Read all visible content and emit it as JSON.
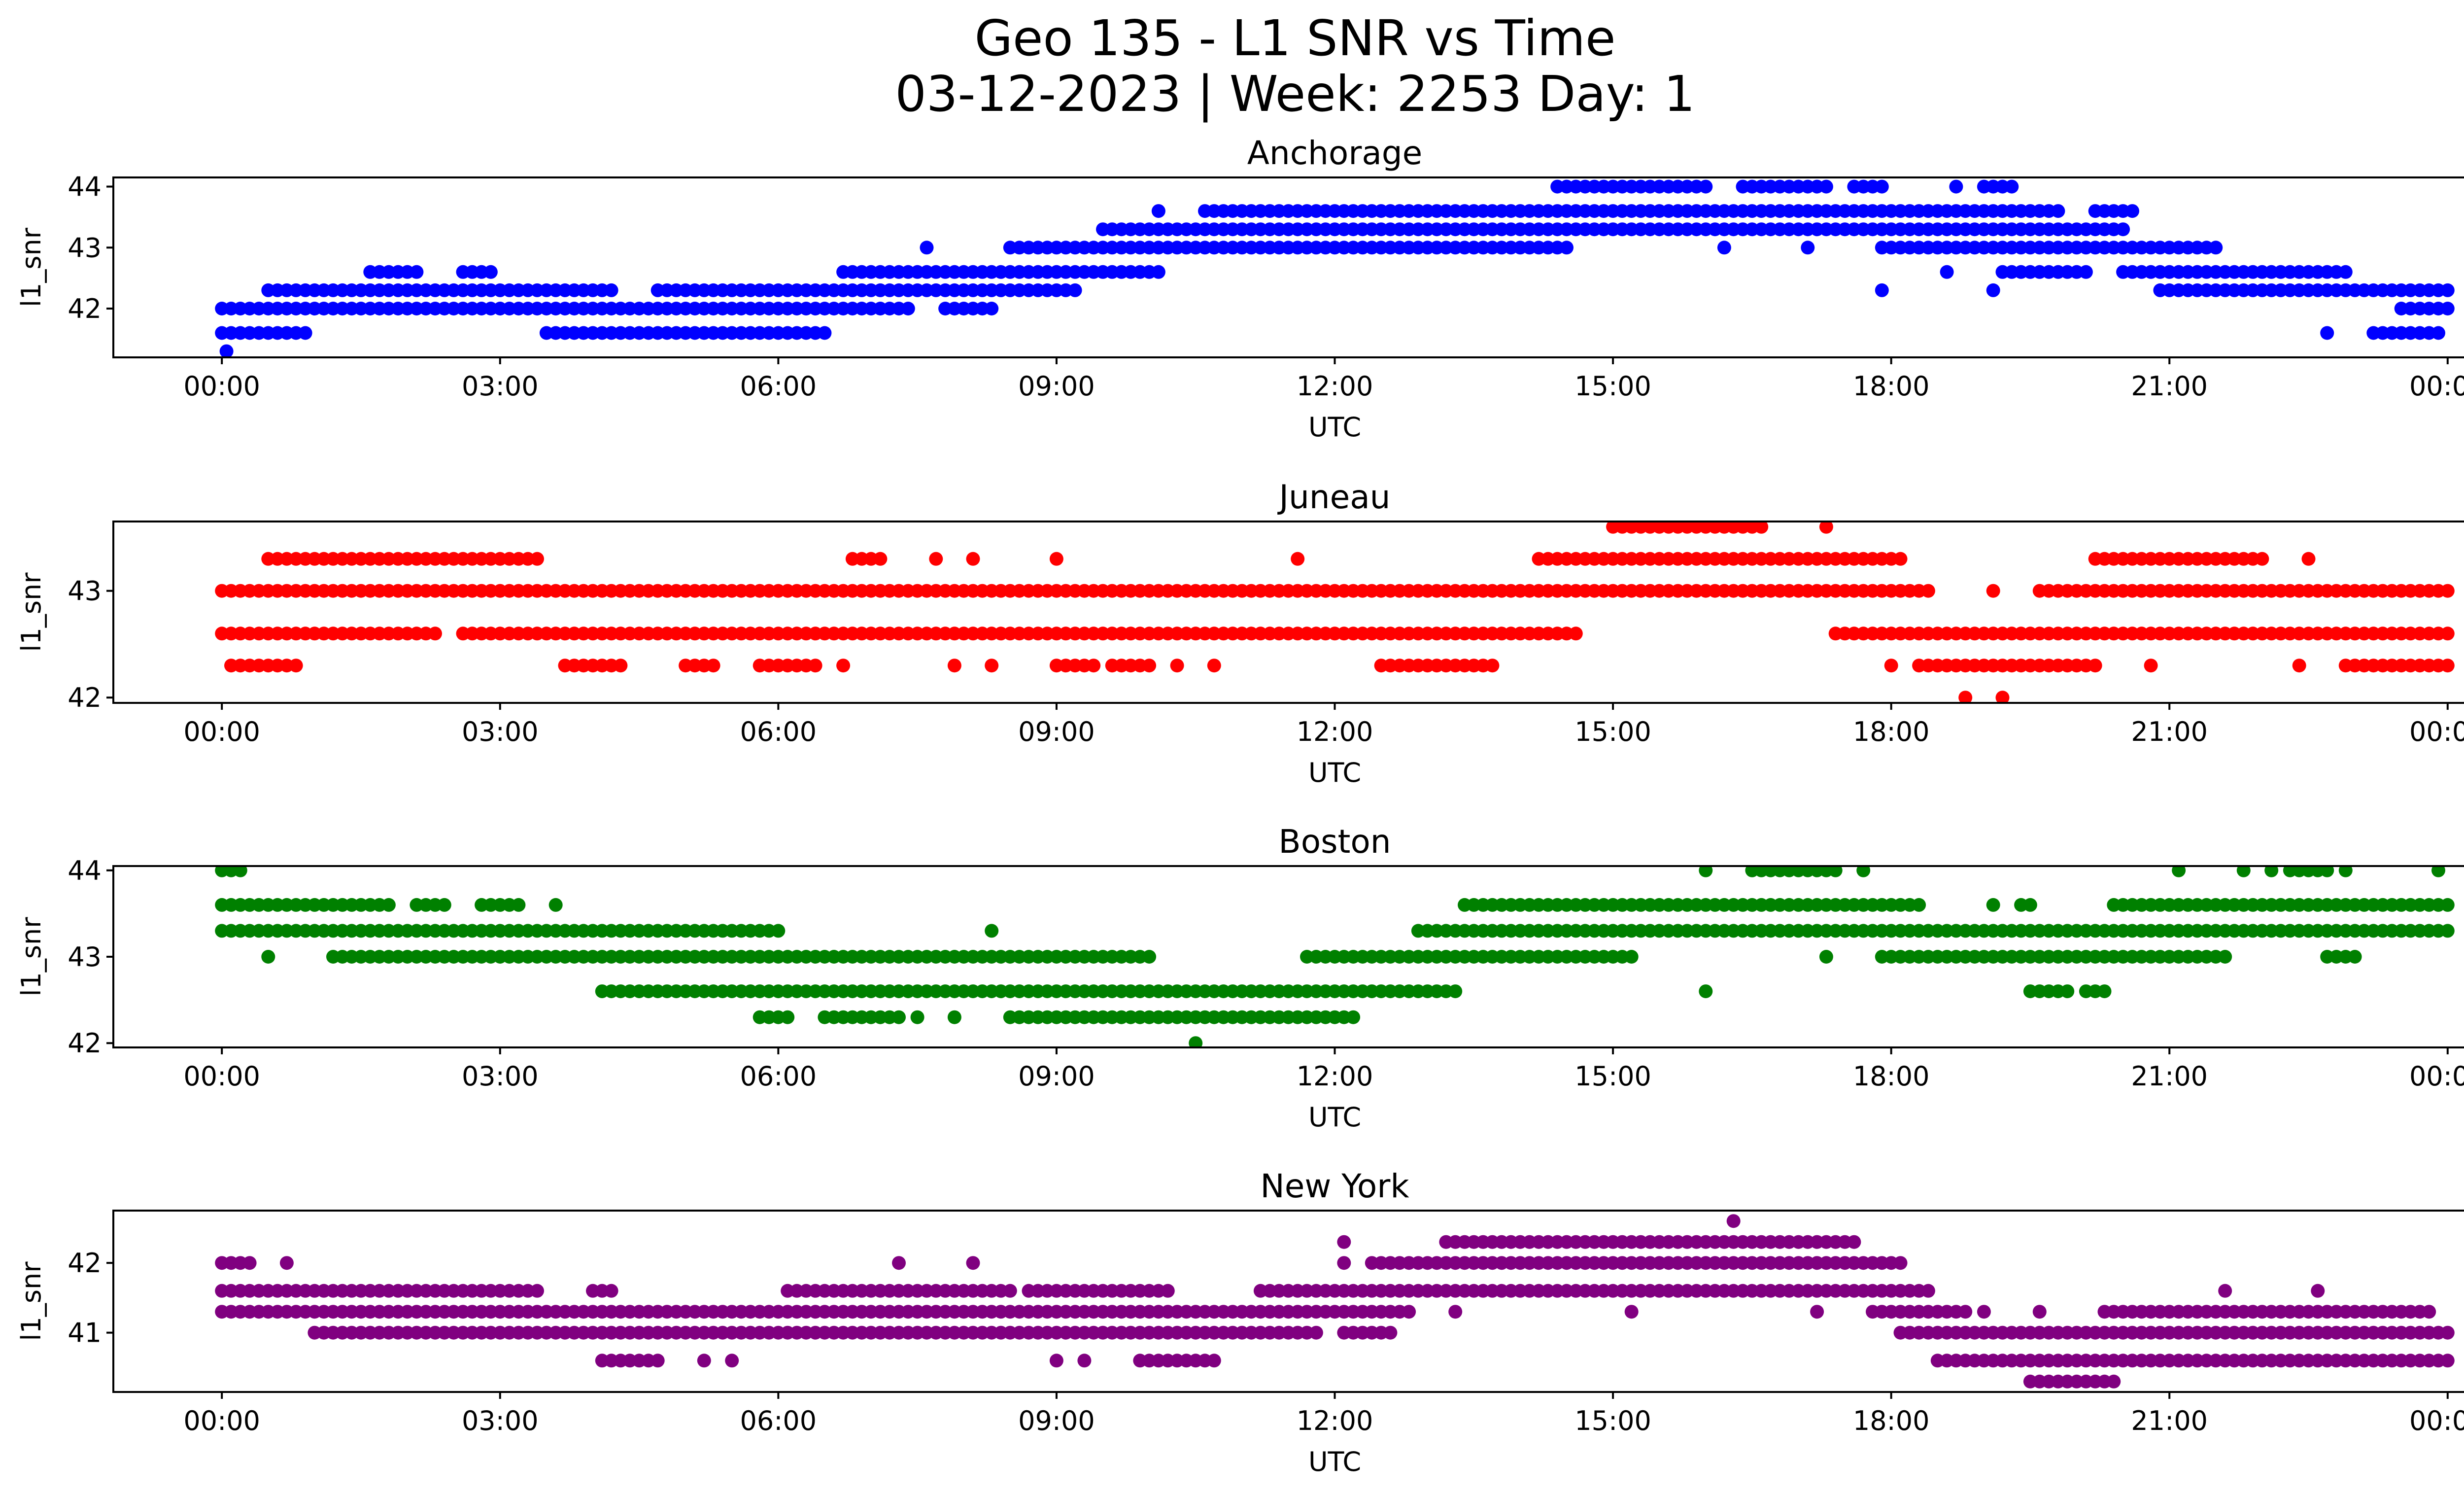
{
  "figure": {
    "title_line1": "Geo 135 - L1 SNR vs Time",
    "title_line2": "03-12-2023 | Week: 2253 Day: 1"
  },
  "chart_data": [
    {
      "type": "scatter",
      "title": "Anchorage",
      "xlabel": "UTC",
      "ylabel": "l1_snr",
      "color": "#0000ff",
      "xlim_hours": [
        -1.17,
        25.17
      ],
      "ylim": [
        41.2,
        44.15
      ],
      "xticks": [
        {
          "value": 0,
          "label": "00:00"
        },
        {
          "value": 3,
          "label": "03:00"
        },
        {
          "value": 6,
          "label": "06:00"
        },
        {
          "value": 9,
          "label": "09:00"
        },
        {
          "value": 12,
          "label": "12:00"
        },
        {
          "value": 15,
          "label": "15:00"
        },
        {
          "value": 18,
          "label": "18:00"
        },
        {
          "value": 21,
          "label": "21:00"
        },
        {
          "value": 24,
          "label": "00:00"
        }
      ],
      "yticks": [
        {
          "value": 42,
          "label": "42"
        },
        {
          "value": 43,
          "label": "43"
        },
        {
          "value": 44,
          "label": "44"
        }
      ],
      "bands": [
        {
          "y": 41.3,
          "x": [
            0.05
          ]
        },
        {
          "y": 41.6,
          "x": [
            [
              0,
              0.9
            ],
            [
              3.5,
              6.5
            ],
            [
              22.7
            ],
            [
              23.2,
              23.9
            ]
          ]
        },
        {
          "y": 42.0,
          "x": [
            [
              0,
              7.4
            ],
            [
              7.8,
              8.3
            ],
            [
              23.5,
              24
            ]
          ]
        },
        {
          "y": 42.3,
          "x": [
            [
              0.5,
              4.2
            ],
            [
              4.7,
              9.2
            ],
            [
              17.9
            ],
            [
              19.1
            ],
            [
              20.9,
              24
            ]
          ]
        },
        {
          "y": 42.6,
          "x": [
            [
              1.6,
              2.1
            ],
            [
              2.6,
              2.9
            ],
            [
              6.7,
              10.1
            ],
            [
              18.6
            ],
            [
              19.2,
              20.1
            ],
            [
              20.5,
              22.9
            ]
          ]
        },
        {
          "y": 43.0,
          "x": [
            [
              7.6
            ],
            [
              8.5,
              14.5
            ],
            [
              16.2
            ],
            [
              17.1
            ],
            [
              17.9,
              21.5
            ]
          ]
        },
        {
          "y": 43.3,
          "x": [
            [
              9.5,
              20.5
            ]
          ]
        },
        {
          "y": 43.6,
          "x": [
            [
              10.1
            ],
            [
              10.6,
              19.8
            ],
            [
              20.2,
              20.6
            ]
          ]
        },
        {
          "y": 44.0,
          "x": [
            [
              14.4,
              16.0
            ],
            [
              16.4,
              17.3
            ],
            [
              17.6,
              17.9
            ],
            [
              18.7
            ],
            [
              19.0,
              19.3
            ]
          ]
        }
      ]
    },
    {
      "type": "scatter",
      "title": "Juneau",
      "xlabel": "UTC",
      "ylabel": "l1_snr",
      "color": "#ff0000",
      "xlim_hours": [
        -1.17,
        25.17
      ],
      "ylim": [
        41.95,
        43.65
      ],
      "xticks": [
        {
          "value": 0,
          "label": "00:00"
        },
        {
          "value": 3,
          "label": "03:00"
        },
        {
          "value": 6,
          "label": "06:00"
        },
        {
          "value": 9,
          "label": "09:00"
        },
        {
          "value": 12,
          "label": "12:00"
        },
        {
          "value": 15,
          "label": "15:00"
        },
        {
          "value": 18,
          "label": "18:00"
        },
        {
          "value": 21,
          "label": "21:00"
        },
        {
          "value": 24,
          "label": "00:00"
        }
      ],
      "yticks": [
        {
          "value": 42,
          "label": "42"
        },
        {
          "value": 43,
          "label": "43"
        }
      ],
      "bands": [
        {
          "y": 42.0,
          "x": [
            [
              18.8
            ],
            [
              19.2
            ]
          ]
        },
        {
          "y": 42.3,
          "x": [
            [
              0.1,
              0.8
            ],
            [
              3.7,
              4.3
            ],
            [
              5.0,
              5.3
            ],
            [
              5.8,
              6.4
            ],
            [
              6.7
            ],
            [
              7.9
            ],
            [
              8.3
            ],
            [
              9.0,
              9.4
            ],
            [
              9.6,
              10.0
            ],
            [
              10.3
            ],
            [
              10.7
            ],
            [
              12.5,
              13.7
            ],
            [
              18.0
            ],
            [
              18.3,
              20.2
            ],
            [
              20.8
            ],
            [
              22.4
            ],
            [
              22.9,
              24
            ]
          ]
        },
        {
          "y": 42.6,
          "x": [
            [
              0,
              2.3
            ],
            [
              2.6,
              14.6
            ],
            [
              17.4,
              24
            ]
          ]
        },
        {
          "y": 43.0,
          "x": [
            [
              0,
              18.4
            ],
            [
              19.1
            ],
            [
              19.6,
              24
            ]
          ]
        },
        {
          "y": 43.3,
          "x": [
            [
              0.5,
              3.4
            ],
            [
              6.8,
              7.1
            ],
            [
              7.7
            ],
            [
              8.1
            ],
            [
              9.0
            ],
            [
              11.6
            ],
            [
              14.2,
              18.1
            ],
            [
              20.2,
              22.0
            ],
            [
              22.5
            ]
          ]
        },
        {
          "y": 43.6,
          "x": [
            [
              15.0,
              16.6
            ],
            [
              17.3
            ]
          ]
        }
      ]
    },
    {
      "type": "scatter",
      "title": "Boston",
      "xlabel": "UTC",
      "ylabel": "l1_snr",
      "color": "#008000",
      "xlim_hours": [
        -1.17,
        25.17
      ],
      "ylim": [
        41.95,
        44.05
      ],
      "xticks": [
        {
          "value": 0,
          "label": "00:00"
        },
        {
          "value": 3,
          "label": "03:00"
        },
        {
          "value": 6,
          "label": "06:00"
        },
        {
          "value": 9,
          "label": "09:00"
        },
        {
          "value": 12,
          "label": "12:00"
        },
        {
          "value": 15,
          "label": "15:00"
        },
        {
          "value": 18,
          "label": "18:00"
        },
        {
          "value": 21,
          "label": "21:00"
        },
        {
          "value": 24,
          "label": "00:00"
        }
      ],
      "yticks": [
        {
          "value": 42,
          "label": "42"
        },
        {
          "value": 43,
          "label": "43"
        },
        {
          "value": 44,
          "label": "44"
        }
      ],
      "bands": [
        {
          "y": 42.0,
          "x": [
            [
              10.5
            ]
          ]
        },
        {
          "y": 42.3,
          "x": [
            [
              5.8,
              6.1
            ],
            [
              6.5,
              7.3
            ],
            [
              7.5
            ],
            [
              7.9
            ],
            [
              8.5,
              12.2
            ]
          ]
        },
        {
          "y": 42.6,
          "x": [
            [
              4.1,
              13.3
            ],
            [
              16.0
            ],
            [
              19.5,
              19.9
            ],
            [
              20.1,
              20.3
            ]
          ]
        },
        {
          "y": 43.0,
          "x": [
            [
              0.5
            ],
            [
              1.2,
              10.0
            ],
            [
              11.7,
              15.2
            ],
            [
              17.3
            ],
            [
              17.9,
              21.6
            ],
            [
              22.7,
              23.0
            ]
          ]
        },
        {
          "y": 43.3,
          "x": [
            [
              0,
              6.0
            ],
            [
              8.3
            ],
            [
              12.9,
              24
            ]
          ]
        },
        {
          "y": 43.6,
          "x": [
            [
              0,
              1.8
            ],
            [
              2.1,
              2.4
            ],
            [
              2.8,
              3.2
            ],
            [
              3.6
            ],
            [
              13.4,
              18.3
            ],
            [
              19.1
            ],
            [
              19.4,
              19.5
            ],
            [
              20.4,
              24
            ]
          ]
        },
        {
          "y": 44.0,
          "x": [
            [
              0,
              0.2
            ],
            [
              16.0
            ],
            [
              16.5,
              17.4
            ],
            [
              17.7
            ],
            [
              21.1
            ],
            [
              21.8
            ],
            [
              22.1
            ],
            [
              22.3,
              22.7
            ],
            [
              22.9
            ],
            [
              23.9
            ]
          ]
        }
      ]
    },
    {
      "type": "scatter",
      "title": "New York",
      "xlabel": "UTC",
      "ylabel": "l1_snr",
      "color": "#800080",
      "xlim_hours": [
        -1.17,
        25.17
      ],
      "ylim": [
        40.15,
        42.75
      ],
      "xticks": [
        {
          "value": 0,
          "label": "00:00"
        },
        {
          "value": 3,
          "label": "03:00"
        },
        {
          "value": 6,
          "label": "06:00"
        },
        {
          "value": 9,
          "label": "09:00"
        },
        {
          "value": 12,
          "label": "12:00"
        },
        {
          "value": 15,
          "label": "15:00"
        },
        {
          "value": 18,
          "label": "18:00"
        },
        {
          "value": 21,
          "label": "21:00"
        },
        {
          "value": 24,
          "label": "00:00"
        }
      ],
      "yticks": [
        {
          "value": 41,
          "label": "41"
        },
        {
          "value": 42,
          "label": "42"
        }
      ],
      "bands": [
        {
          "y": 40.3,
          "x": [
            [
              19.5,
              20.4
            ]
          ]
        },
        {
          "y": 40.6,
          "x": [
            [
              4.1,
              4.7
            ],
            [
              5.2
            ],
            [
              5.5
            ],
            [
              9.0
            ],
            [
              9.3
            ],
            [
              9.9,
              10.7
            ],
            [
              18.5,
              24
            ]
          ]
        },
        {
          "y": 41.0,
          "x": [
            [
              1.0,
              1.3
            ],
            [
              1.4,
              11.8
            ],
            [
              12.1,
              12.6
            ],
            [
              18.1,
              24
            ]
          ]
        },
        {
          "y": 41.3,
          "x": [
            [
              0,
              12.8
            ],
            [
              13.3
            ],
            [
              15.2
            ],
            [
              17.2
            ],
            [
              17.8,
              18.8
            ],
            [
              19.0
            ],
            [
              19.6
            ],
            [
              20.3,
              23.8
            ]
          ]
        },
        {
          "y": 41.6,
          "x": [
            [
              0,
              3.4
            ],
            [
              4.0,
              4.2
            ],
            [
              6.1,
              8.5
            ],
            [
              8.7,
              10.2
            ],
            [
              11.2,
              18.4
            ],
            [
              21.6
            ],
            [
              22.6
            ]
          ]
        },
        {
          "y": 42.0,
          "x": [
            [
              0,
              0.3
            ],
            [
              0.7
            ],
            [
              7.3
            ],
            [
              8.1
            ],
            [
              12.1
            ],
            [
              12.4,
              18.1
            ]
          ]
        },
        {
          "y": 42.3,
          "x": [
            [
              12.1
            ],
            [
              13.2,
              17.6
            ]
          ]
        },
        {
          "y": 42.6,
          "x": [
            [
              16.3
            ]
          ]
        }
      ]
    }
  ]
}
